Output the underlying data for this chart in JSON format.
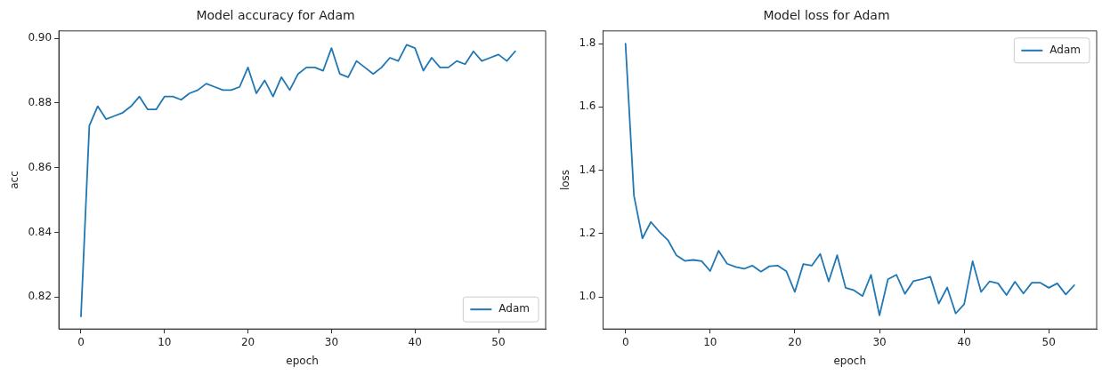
{
  "chart_data": [
    {
      "type": "line",
      "title": "Model accuracy for Adam",
      "xlabel": "epoch",
      "ylabel": "acc",
      "x": [
        0,
        1,
        2,
        3,
        4,
        5,
        6,
        7,
        8,
        9,
        10,
        11,
        12,
        13,
        14,
        15,
        16,
        17,
        18,
        19,
        20,
        21,
        22,
        23,
        24,
        25,
        26,
        27,
        28,
        29,
        30,
        31,
        32,
        33,
        34,
        35,
        36,
        37,
        38,
        39,
        40,
        41,
        42,
        43,
        44,
        45,
        46,
        47,
        48,
        49,
        50,
        51,
        52
      ],
      "series": [
        {
          "name": "Adam",
          "color": "#1f77b4",
          "values": [
            0.814,
            0.873,
            0.879,
            0.875,
            0.876,
            0.877,
            0.879,
            0.882,
            0.878,
            0.878,
            0.882,
            0.882,
            0.881,
            0.883,
            0.884,
            0.886,
            0.885,
            0.884,
            0.884,
            0.885,
            0.891,
            0.883,
            0.887,
            0.882,
            0.888,
            0.884,
            0.889,
            0.891,
            0.891,
            0.89,
            0.897,
            0.889,
            0.888,
            0.893,
            0.891,
            0.889,
            0.891,
            0.894,
            0.893,
            0.898,
            0.897,
            0.89,
            0.894,
            0.891,
            0.891,
            0.893,
            0.892,
            0.896,
            0.893,
            0.894,
            0.895,
            0.893,
            0.896
          ]
        }
      ],
      "xlim": [
        -2.65,
        55.65
      ],
      "xticks": [
        0,
        10,
        20,
        30,
        40,
        50
      ],
      "ylim": [
        0.8101,
        0.9023
      ],
      "yticks": [
        0.82,
        0.84,
        0.86,
        0.88,
        {
          "value": 0.9,
          "label": "0.90"
        }
      ],
      "grid": false,
      "legend": "bottom right",
      "marker": "none",
      "line_style": "solid"
    },
    {
      "type": "line",
      "title": "Model loss for Adam",
      "xlabel": "epoch",
      "ylabel": "loss",
      "x": [
        0,
        1,
        2,
        3,
        4,
        5,
        6,
        7,
        8,
        9,
        10,
        11,
        12,
        13,
        14,
        15,
        16,
        17,
        18,
        19,
        20,
        21,
        22,
        23,
        24,
        25,
        26,
        27,
        28,
        29,
        30,
        31,
        32,
        33,
        34,
        35,
        36,
        37,
        38,
        39,
        40,
        41,
        42,
        43,
        44,
        45,
        46,
        47,
        48,
        49,
        50,
        51,
        52,
        53
      ],
      "series": [
        {
          "name": "Adam",
          "color": "#1f77b4",
          "values": [
            1.8,
            1.32,
            1.185,
            1.237,
            1.206,
            1.18,
            1.132,
            1.114,
            1.117,
            1.113,
            1.082,
            1.146,
            1.105,
            1.095,
            1.089,
            1.099,
            1.08,
            1.097,
            1.099,
            1.081,
            1.016,
            1.104,
            1.099,
            1.136,
            1.049,
            1.132,
            1.029,
            1.021,
            1.003,
            1.07,
            0.942,
            1.056,
            1.07,
            1.01,
            1.05,
            1.056,
            1.064,
            0.979,
            1.03,
            0.948,
            0.977,
            1.113,
            1.016,
            1.049,
            1.043,
            1.006,
            1.048,
            1.011,
            1.045,
            1.045,
            1.029,
            1.043,
            1.008,
            1.037
          ]
        }
      ],
      "xlim": [
        -2.65,
        55.65
      ],
      "xticks": [
        0,
        10,
        20,
        30,
        40,
        50
      ],
      "ylim": [
        0.899,
        1.84
      ],
      "yticks": [
        {
          "value": 1.0,
          "label": "1.0"
        },
        {
          "value": 1.2,
          "label": "1.2"
        },
        {
          "value": 1.4,
          "label": "1.4"
        },
        {
          "value": 1.6,
          "label": "1.6"
        },
        {
          "value": 1.8,
          "label": "1.8"
        }
      ],
      "grid": false,
      "legend": "top right",
      "marker": "none",
      "line_style": "solid"
    }
  ]
}
